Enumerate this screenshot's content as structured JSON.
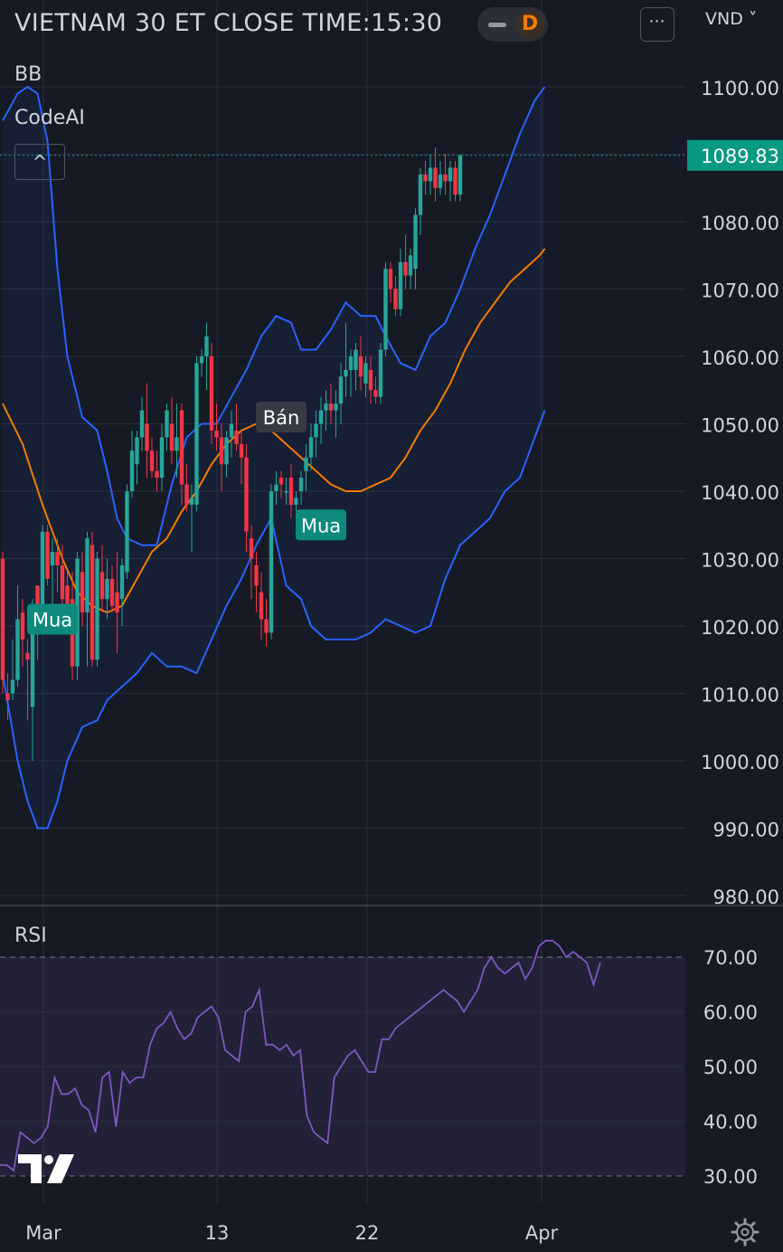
{
  "header": {
    "title": "VIETNAM 30 ET CLOSE TIME:15:30",
    "resolution": "D",
    "more_icon": "⋯",
    "currency": "VND ˅"
  },
  "indicators": {
    "bb": "BB",
    "codeai": "CodeAI",
    "collapse_icon": "^",
    "rsi": "RSI"
  },
  "colors": {
    "background": "#161a25",
    "up": "#26a69a",
    "down": "#f23645",
    "bb_band": "#2962ff",
    "bb_basis": "#f57c00",
    "rsi": "#7e57c2",
    "last_price": "#089981"
  },
  "chart_data": [
    {
      "type": "candlestick",
      "ylim": [
        977,
        1102
      ],
      "yticks": [
        "1100.00",
        "1090.00",
        "1080.00",
        "1070.00",
        "1060.00",
        "1050.00",
        "1040.00",
        "1030.00",
        "1020.00",
        "1010.00",
        "1000.00",
        "990.00",
        "980.00"
      ],
      "xticks": [
        "Mar",
        "13",
        "22",
        "Apr"
      ],
      "last_price": "1089.83",
      "ohlc": [
        [
          1030,
          1031,
          1010,
          1012
        ],
        [
          1010,
          1013,
          1006,
          1009
        ],
        [
          1010,
          1018,
          1009,
          1012
        ],
        [
          1012,
          1026,
          1011,
          1021
        ],
        [
          1022,
          1024,
          1014,
          1018
        ],
        [
          1016,
          1018,
          1006,
          1015
        ],
        [
          1008,
          1024,
          1000,
          1023
        ],
        [
          1026,
          1026,
          1015,
          1022
        ],
        [
          1021,
          1035,
          1019,
          1034
        ],
        [
          1034,
          1035,
          1026,
          1027
        ],
        [
          1029,
          1033,
          1022,
          1031
        ],
        [
          1031,
          1033,
          1025,
          1029
        ],
        [
          1029,
          1032,
          1022,
          1024
        ],
        [
          1026,
          1028,
          1020,
          1022
        ],
        [
          1024,
          1028,
          1012,
          1014
        ],
        [
          1014,
          1031,
          1012,
          1030
        ],
        [
          1028,
          1031,
          1020,
          1022
        ],
        [
          1022,
          1034,
          1014,
          1033
        ],
        [
          1032,
          1034,
          1014,
          1015
        ],
        [
          1015,
          1031,
          1014,
          1030
        ],
        [
          1028,
          1032,
          1022,
          1024
        ],
        [
          1024,
          1030,
          1021,
          1027
        ],
        [
          1027,
          1029,
          1022,
          1023
        ],
        [
          1025,
          1031,
          1016,
          1022
        ],
        [
          1024,
          1030,
          1020,
          1029
        ],
        [
          1028,
          1041,
          1027,
          1040
        ],
        [
          1040,
          1049,
          1039,
          1046
        ],
        [
          1044,
          1049,
          1041,
          1048
        ],
        [
          1048,
          1054,
          1046,
          1052
        ],
        [
          1050,
          1056,
          1042,
          1046
        ],
        [
          1046,
          1048,
          1042,
          1043
        ],
        [
          1043,
          1046,
          1040,
          1042
        ],
        [
          1042,
          1050,
          1040,
          1048
        ],
        [
          1048,
          1053,
          1046,
          1052
        ],
        [
          1050,
          1054,
          1044,
          1046
        ],
        [
          1046,
          1053,
          1042,
          1048
        ],
        [
          1052,
          1053,
          1038,
          1041
        ],
        [
          1041,
          1044,
          1037,
          1038
        ],
        [
          1038,
          1041,
          1031,
          1039
        ],
        [
          1038,
          1060,
          1037,
          1059
        ],
        [
          1059,
          1061,
          1057,
          1060
        ],
        [
          1060,
          1065,
          1055,
          1063
        ],
        [
          1060,
          1062,
          1047,
          1049
        ],
        [
          1049,
          1053,
          1046,
          1048
        ],
        [
          1048,
          1050,
          1040,
          1044
        ],
        [
          1044,
          1049,
          1042,
          1048
        ],
        [
          1048,
          1052,
          1045,
          1050
        ],
        [
          1049,
          1053,
          1046,
          1047
        ],
        [
          1047,
          1049,
          1041,
          1045
        ],
        [
          1045,
          1047,
          1031,
          1034
        ],
        [
          1033,
          1035,
          1024,
          1030
        ],
        [
          1029,
          1031,
          1022,
          1026
        ],
        [
          1025,
          1028,
          1018,
          1021
        ],
        [
          1021,
          1024,
          1017,
          1019
        ],
        [
          1019,
          1041,
          1018,
          1040
        ],
        [
          1040,
          1043,
          1038,
          1041
        ],
        [
          1042,
          1043,
          1039,
          1041
        ],
        [
          1040,
          1042,
          1038,
          1040
        ],
        [
          1042,
          1044,
          1036,
          1038
        ],
        [
          1038,
          1040,
          1037,
          1039
        ],
        [
          1040,
          1043,
          1038,
          1042
        ],
        [
          1043,
          1047,
          1040,
          1045
        ],
        [
          1045,
          1050,
          1043,
          1048
        ],
        [
          1048,
          1052,
          1045,
          1050
        ],
        [
          1050,
          1054,
          1047,
          1052
        ],
        [
          1052,
          1055,
          1049,
          1053
        ],
        [
          1053,
          1056,
          1050,
          1052
        ],
        [
          1052,
          1055,
          1048,
          1053
        ],
        [
          1053,
          1059,
          1050,
          1057
        ],
        [
          1057,
          1065,
          1054,
          1058
        ],
        [
          1058,
          1061,
          1054,
          1060
        ],
        [
          1058,
          1062,
          1055,
          1061
        ],
        [
          1060,
          1063,
          1055,
          1057
        ],
        [
          1056,
          1060,
          1054,
          1059
        ],
        [
          1058,
          1060,
          1053,
          1055
        ],
        [
          1055,
          1057,
          1053,
          1054
        ],
        [
          1054,
          1062,
          1053,
          1061
        ],
        [
          1061,
          1074,
          1060,
          1073
        ],
        [
          1073,
          1074,
          1068,
          1070
        ],
        [
          1070,
          1072,
          1066,
          1067
        ],
        [
          1067,
          1076,
          1066,
          1074
        ],
        [
          1074,
          1078,
          1070,
          1072
        ],
        [
          1072,
          1076,
          1070,
          1075
        ],
        [
          1073,
          1082,
          1070,
          1081
        ],
        [
          1081,
          1088,
          1078,
          1087
        ],
        [
          1087,
          1089,
          1084,
          1086
        ],
        [
          1086,
          1090,
          1084,
          1088
        ],
        [
          1088,
          1091,
          1083,
          1085
        ],
        [
          1085,
          1089,
          1084,
          1087
        ],
        [
          1087,
          1090,
          1084,
          1086
        ],
        [
          1086,
          1089,
          1083,
          1088
        ],
        [
          1088,
          1089,
          1083,
          1084
        ],
        [
          1084,
          1090,
          1083,
          1089.83
        ]
      ],
      "bb_upper": [
        [
          0,
          1095
        ],
        [
          3,
          1099
        ],
        [
          5,
          1100
        ],
        [
          7,
          1099
        ],
        [
          9,
          1092
        ],
        [
          11,
          1073
        ],
        [
          13,
          1060
        ],
        [
          16,
          1051
        ],
        [
          19,
          1049
        ],
        [
          21,
          1043
        ],
        [
          23,
          1036
        ],
        [
          25,
          1033
        ],
        [
          28,
          1032
        ],
        [
          31,
          1032
        ],
        [
          34,
          1041
        ],
        [
          37,
          1048
        ],
        [
          40,
          1050
        ],
        [
          43,
          1050
        ],
        [
          46,
          1054
        ],
        [
          49,
          1058
        ],
        [
          52,
          1063
        ],
        [
          55,
          1066
        ],
        [
          58,
          1065
        ],
        [
          60,
          1061
        ],
        [
          63,
          1061
        ],
        [
          66,
          1064
        ],
        [
          69,
          1068
        ],
        [
          72,
          1066
        ],
        [
          75,
          1066
        ],
        [
          77,
          1063
        ],
        [
          80,
          1059
        ],
        [
          83,
          1058
        ],
        [
          86,
          1063
        ],
        [
          89,
          1065
        ],
        [
          92,
          1070
        ],
        [
          95,
          1076
        ],
        [
          98,
          1081
        ],
        [
          101,
          1087
        ],
        [
          104,
          1093
        ],
        [
          107,
          1098
        ],
        [
          109,
          1100
        ]
      ],
      "bb_basis": [
        [
          0,
          1053
        ],
        [
          4,
          1047
        ],
        [
          8,
          1038
        ],
        [
          12,
          1030
        ],
        [
          15,
          1025
        ],
        [
          18,
          1023
        ],
        [
          21,
          1022
        ],
        [
          24,
          1023
        ],
        [
          27,
          1027
        ],
        [
          30,
          1031
        ],
        [
          33,
          1033
        ],
        [
          36,
          1037
        ],
        [
          39,
          1040
        ],
        [
          42,
          1044
        ],
        [
          45,
          1047
        ],
        [
          48,
          1049
        ],
        [
          51,
          1050
        ],
        [
          54,
          1049
        ],
        [
          57,
          1047
        ],
        [
          60,
          1045
        ],
        [
          63,
          1043
        ],
        [
          66,
          1041
        ],
        [
          69,
          1040
        ],
        [
          72,
          1040
        ],
        [
          75,
          1041
        ],
        [
          78,
          1042
        ],
        [
          81,
          1045
        ],
        [
          84,
          1049
        ],
        [
          87,
          1052
        ],
        [
          90,
          1056
        ],
        [
          93,
          1061
        ],
        [
          96,
          1065
        ],
        [
          99,
          1068
        ],
        [
          102,
          1071
        ],
        [
          105,
          1073
        ],
        [
          108,
          1075
        ],
        [
          109,
          1076
        ]
      ],
      "bb_lower": [
        [
          0,
          1013
        ],
        [
          3,
          1000
        ],
        [
          5,
          994
        ],
        [
          7,
          990
        ],
        [
          9,
          990
        ],
        [
          11,
          994
        ],
        [
          13,
          1000
        ],
        [
          16,
          1005
        ],
        [
          19,
          1006
        ],
        [
          21,
          1009
        ],
        [
          24,
          1011
        ],
        [
          27,
          1013
        ],
        [
          30,
          1016
        ],
        [
          33,
          1014
        ],
        [
          36,
          1014
        ],
        [
          39,
          1013
        ],
        [
          42,
          1018
        ],
        [
          45,
          1023
        ],
        [
          48,
          1027
        ],
        [
          51,
          1032
        ],
        [
          54,
          1036
        ],
        [
          57,
          1026
        ],
        [
          60,
          1024
        ],
        [
          62,
          1020
        ],
        [
          65,
          1018
        ],
        [
          68,
          1018
        ],
        [
          71,
          1018
        ],
        [
          74,
          1019
        ],
        [
          77,
          1021
        ],
        [
          80,
          1020
        ],
        [
          83,
          1019
        ],
        [
          86,
          1020
        ],
        [
          89,
          1027
        ],
        [
          92,
          1032
        ],
        [
          95,
          1034
        ],
        [
          98,
          1036
        ],
        [
          101,
          1040
        ],
        [
          104,
          1042
        ],
        [
          107,
          1048
        ],
        [
          109,
          1052
        ]
      ],
      "signals": [
        {
          "label": "Mua",
          "type": "buy",
          "bar": 10,
          "price": 1021
        },
        {
          "label": "Bán",
          "type": "sell",
          "bar": 56,
          "price": 1051
        },
        {
          "label": "Mua",
          "type": "buy",
          "bar": 64,
          "price": 1035
        }
      ]
    },
    {
      "type": "line",
      "title": "RSI",
      "ylim": [
        28,
        73
      ],
      "yticks": [
        "70.00",
        "60.00",
        "50.00",
        "40.00",
        "30.00"
      ],
      "upper": 70,
      "lower": 30,
      "values": [
        32,
        32,
        31,
        38,
        37,
        36,
        37,
        39,
        48,
        45,
        45,
        46,
        43,
        42,
        38,
        48,
        49,
        39,
        49,
        47,
        48,
        48,
        54,
        57,
        58,
        60,
        57,
        55,
        56,
        59,
        60,
        61,
        59,
        53,
        52,
        51,
        60,
        61,
        64,
        54,
        54,
        53,
        54,
        52,
        53,
        41,
        38,
        37,
        36,
        48,
        50,
        52,
        53,
        51,
        49,
        49,
        55,
        55,
        57,
        58,
        59,
        60,
        61,
        62,
        63,
        64,
        63,
        62,
        60,
        62,
        64,
        68,
        70,
        68,
        67,
        68,
        69,
        66,
        68,
        72,
        73,
        73,
        72,
        70,
        71,
        70,
        69,
        65,
        69
      ]
    }
  ]
}
